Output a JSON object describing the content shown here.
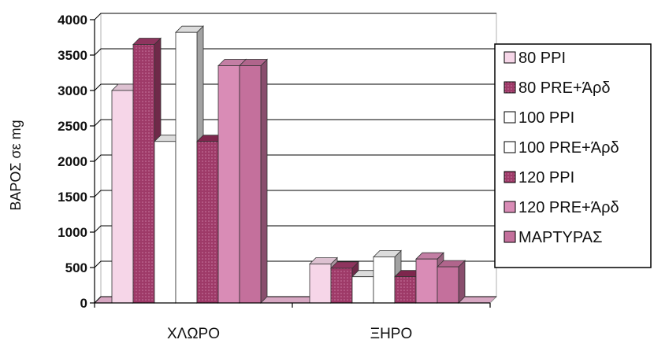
{
  "chart_data": {
    "type": "bar",
    "title": "",
    "xlabel": "",
    "ylabel": "ΒΑΡΟΣ σε mg",
    "ylim": [
      0,
      4000
    ],
    "yticks": [
      0,
      500,
      1000,
      1500,
      2000,
      2500,
      3000,
      3500,
      4000
    ],
    "categories": [
      "ΧΛΩΡΟ",
      "ΞΗΡΟ"
    ],
    "grid": true,
    "legend_position": "right",
    "series": [
      {
        "name": "80 PPI",
        "values": [
          3000,
          550
        ],
        "color": "#f6d6e8",
        "pattern": "solid"
      },
      {
        "name": "80 PRE+Άρδ",
        "values": [
          3650,
          490
        ],
        "color": "#9e3a68",
        "pattern": "dotted"
      },
      {
        "name": "100 PPI",
        "values": [
          2280,
          370
        ],
        "color": "#ffffff",
        "pattern": "solid"
      },
      {
        "name": "100 PRE+Άρδ",
        "values": [
          3820,
          650
        ],
        "color": "#ffffff",
        "pattern": "solid"
      },
      {
        "name": "120 PPI",
        "values": [
          2280,
          370
        ],
        "color": "#8c2a55",
        "pattern": "dotted"
      },
      {
        "name": "120 PRE+Άρδ",
        "values": [
          3350,
          620
        ],
        "color": "#d98cb6",
        "pattern": "solid"
      },
      {
        "name": "ΜΑΡΤΥΡΑΣ",
        "values": [
          3350,
          510
        ],
        "color": "#c4709c",
        "pattern": "solid"
      }
    ]
  }
}
